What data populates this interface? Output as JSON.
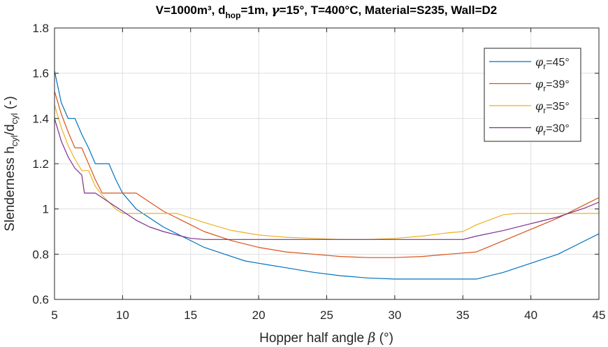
{
  "chart_data": {
    "type": "line",
    "title": {
      "p1": "V=1000m³, d",
      "p2": "hop",
      "p3": "=1m, ",
      "p4": "γ",
      "p5": "=15°, T=400°C, Material=S235, Wall=D2"
    },
    "xlabel": {
      "text": "Hopper half angle ",
      "symbol": "β",
      "unit": " (°)"
    },
    "ylabel": {
      "p1": "Slenderness h",
      "p2": "cyl",
      "p3": "/d",
      "p4": "cyl",
      "p5": " (-)"
    },
    "xlim": [
      5,
      45
    ],
    "ylim": [
      0.6,
      1.8
    ],
    "xticks": [
      5,
      10,
      15,
      20,
      25,
      30,
      35,
      40,
      45
    ],
    "yticks": [
      0.6,
      0.8,
      1.0,
      1.2,
      1.4,
      1.6,
      1.8
    ],
    "xtick_labels": [
      "5",
      "10",
      "15",
      "20",
      "25",
      "30",
      "35",
      "40",
      "45"
    ],
    "ytick_labels": [
      "0.6",
      "0.8",
      "1",
      "1.2",
      "1.4",
      "1.6",
      "1.8"
    ],
    "grid": true,
    "legend_position": "top-right",
    "series": [
      {
        "name": "=45°",
        "symbol": "φ",
        "subscript": "r",
        "color": "#0072BD",
        "x": [
          5,
          5.5,
          6,
          6.5,
          7,
          7.5,
          8,
          8.5,
          9,
          9.5,
          10,
          11,
          12,
          13,
          14,
          15,
          16,
          17,
          18,
          19,
          20,
          22,
          24,
          26,
          28,
          30,
          32,
          34,
          35,
          36,
          38,
          40,
          42,
          44,
          45
        ],
        "y": [
          1.61,
          1.47,
          1.4,
          1.4,
          1.33,
          1.27,
          1.2,
          1.2,
          1.2,
          1.13,
          1.07,
          1.0,
          0.96,
          0.92,
          0.89,
          0.86,
          0.83,
          0.81,
          0.79,
          0.77,
          0.76,
          0.74,
          0.72,
          0.705,
          0.695,
          0.69,
          0.69,
          0.69,
          0.69,
          0.69,
          0.72,
          0.76,
          0.8,
          0.86,
          0.89
        ]
      },
      {
        "name": "=39°",
        "symbol": "φ",
        "subscript": "r",
        "color": "#D95319",
        "x": [
          5,
          5.5,
          6,
          6.5,
          7,
          7.5,
          8,
          8.5,
          9,
          10,
          11,
          12,
          13,
          14,
          15,
          16,
          18,
          20,
          22,
          24,
          26,
          28,
          30,
          32,
          34,
          35,
          36,
          38,
          40,
          42,
          44,
          45
        ],
        "y": [
          1.52,
          1.42,
          1.34,
          1.27,
          1.27,
          1.2,
          1.13,
          1.07,
          1.07,
          1.07,
          1.07,
          1.03,
          0.99,
          0.96,
          0.93,
          0.9,
          0.86,
          0.83,
          0.81,
          0.8,
          0.79,
          0.785,
          0.785,
          0.79,
          0.8,
          0.805,
          0.81,
          0.86,
          0.91,
          0.96,
          1.02,
          1.05
        ]
      },
      {
        "name": "=35°",
        "symbol": "φ",
        "subscript": "r",
        "color": "#EDB120",
        "x": [
          5,
          5.5,
          6,
          6.5,
          7,
          7.5,
          8,
          8.5,
          9,
          9.5,
          10,
          11,
          12,
          13,
          14,
          15,
          16,
          18,
          20,
          22,
          24,
          26,
          28,
          30,
          32,
          34,
          35,
          36,
          38,
          39,
          40,
          42,
          44,
          45
        ],
        "y": [
          1.46,
          1.36,
          1.28,
          1.22,
          1.17,
          1.17,
          1.1,
          1.06,
          1.03,
          1.0,
          0.98,
          0.98,
          0.98,
          0.98,
          0.98,
          0.96,
          0.94,
          0.905,
          0.885,
          0.875,
          0.87,
          0.865,
          0.865,
          0.87,
          0.88,
          0.895,
          0.9,
          0.93,
          0.975,
          0.98,
          0.98,
          0.98,
          0.98,
          0.98
        ]
      },
      {
        "name": "=30°",
        "symbol": "φ",
        "subscript": "r",
        "color": "#7E2F8E",
        "x": [
          5,
          5.5,
          6,
          6.5,
          7,
          7.2,
          7.5,
          8,
          8.5,
          9,
          10,
          11,
          12,
          13,
          14,
          15,
          16,
          18,
          20,
          22,
          25,
          28,
          30,
          32,
          34,
          35,
          36,
          38,
          40,
          42,
          44,
          45
        ],
        "y": [
          1.4,
          1.3,
          1.23,
          1.18,
          1.15,
          1.07,
          1.07,
          1.07,
          1.05,
          1.03,
          0.99,
          0.95,
          0.92,
          0.9,
          0.885,
          0.87,
          0.865,
          0.865,
          0.865,
          0.865,
          0.865,
          0.865,
          0.865,
          0.865,
          0.865,
          0.865,
          0.88,
          0.905,
          0.935,
          0.965,
          1.005,
          1.03
        ]
      }
    ]
  }
}
